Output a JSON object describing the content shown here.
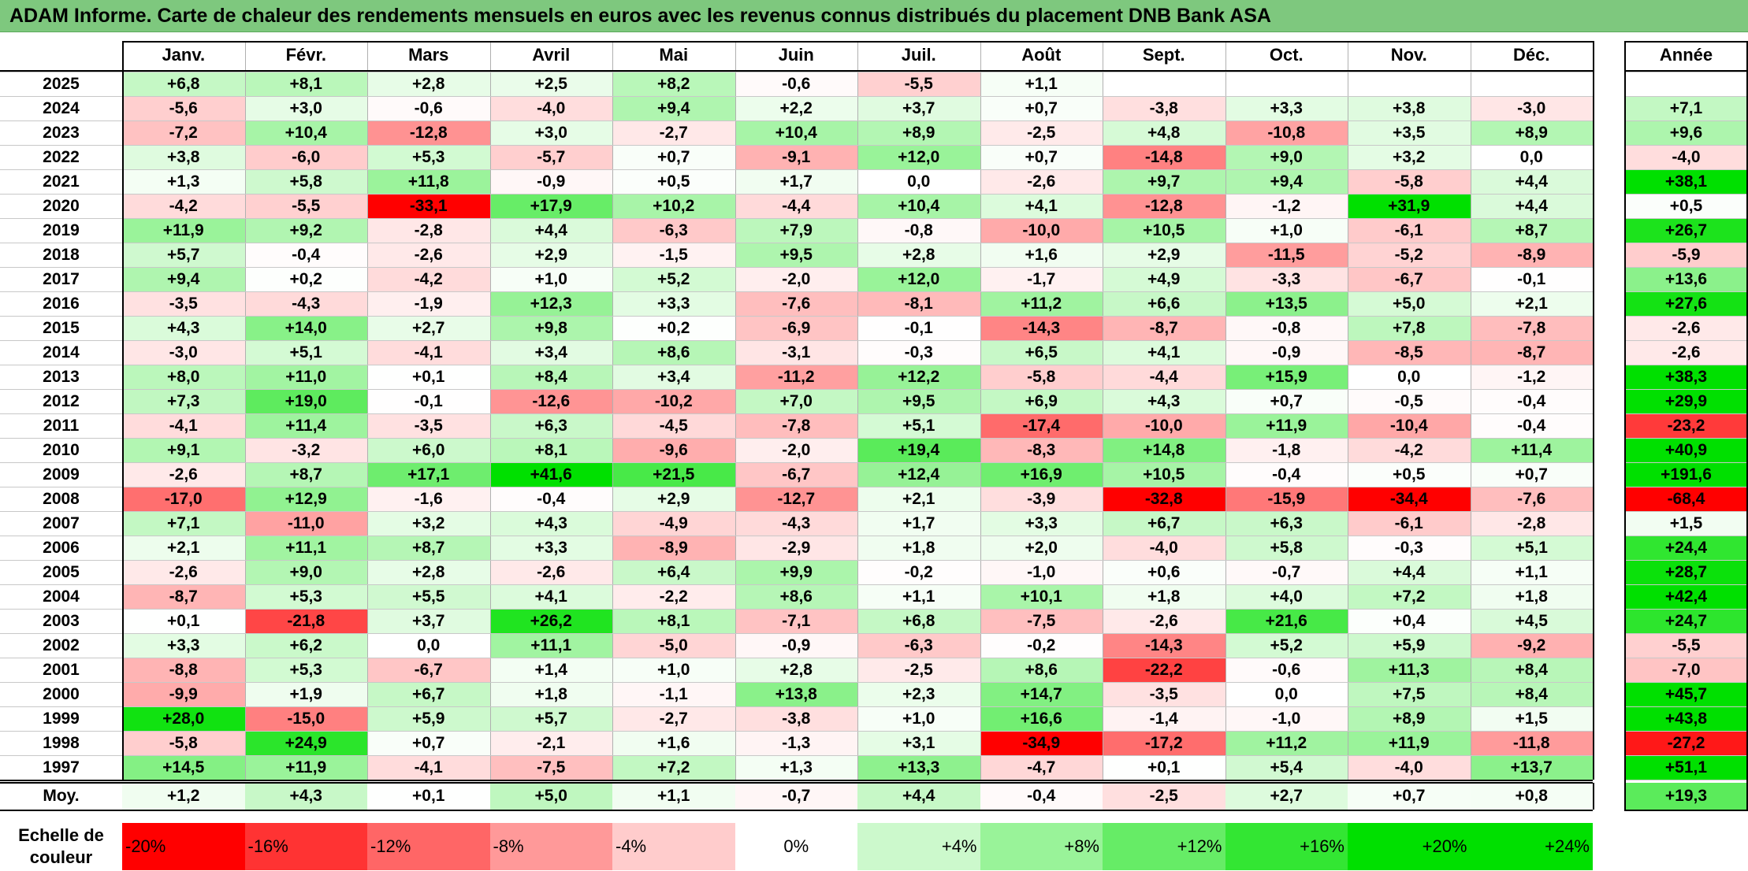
{
  "title": "ADAM Informe. Carte de chaleur des rendements mensuels en euros avec les revenus connus distribués du placement DNB Bank ASA",
  "chart_data": {
    "type": "heatmap",
    "title": "ADAM Informe. Carte de chaleur des rendements mensuels en euros avec les revenus connus distribués du placement DNB Bank ASA",
    "columns": [
      "Janv.",
      "Févr.",
      "Mars",
      "Avril",
      "Mai",
      "Juin",
      "Juil.",
      "Août",
      "Sept.",
      "Oct.",
      "Nov.",
      "Déc."
    ],
    "annual_header": "Année",
    "rows": [
      {
        "year": "2025",
        "values": [
          6.8,
          8.1,
          2.8,
          2.5,
          8.2,
          -0.6,
          -5.5,
          1.1,
          null,
          null,
          null,
          null
        ],
        "annual": null
      },
      {
        "year": "2024",
        "values": [
          -5.6,
          3.0,
          -0.6,
          -4.0,
          9.4,
          2.2,
          3.7,
          0.7,
          -3.8,
          3.3,
          3.8,
          -3.0
        ],
        "annual": 7.1
      },
      {
        "year": "2023",
        "values": [
          -7.2,
          10.4,
          -12.8,
          3.0,
          -2.7,
          10.4,
          8.9,
          -2.5,
          4.8,
          -10.8,
          3.5,
          8.9
        ],
        "annual": 9.6
      },
      {
        "year": "2022",
        "values": [
          3.8,
          -6.0,
          5.3,
          -5.7,
          0.7,
          -9.1,
          12.0,
          0.7,
          -14.8,
          9.0,
          3.2,
          0.0
        ],
        "annual": -4.0
      },
      {
        "year": "2021",
        "values": [
          1.3,
          5.8,
          11.8,
          -0.9,
          0.5,
          1.7,
          0.0,
          -2.6,
          9.7,
          9.4,
          -5.8,
          4.4
        ],
        "annual": 38.1
      },
      {
        "year": "2020",
        "values": [
          -4.2,
          -5.5,
          -33.1,
          17.9,
          10.2,
          -4.4,
          10.4,
          4.1,
          -12.8,
          -1.2,
          31.9,
          4.4
        ],
        "annual": 0.5
      },
      {
        "year": "2019",
        "values": [
          11.9,
          9.2,
          -2.8,
          4.4,
          -6.3,
          7.9,
          -0.8,
          -10.0,
          10.5,
          1.0,
          -6.1,
          8.7
        ],
        "annual": 26.7
      },
      {
        "year": "2018",
        "values": [
          5.7,
          -0.4,
          -2.6,
          2.9,
          -1.5,
          9.5,
          2.8,
          1.6,
          2.9,
          -11.5,
          -5.2,
          -8.9
        ],
        "annual": -5.9
      },
      {
        "year": "2017",
        "values": [
          9.4,
          0.2,
          -4.2,
          1.0,
          5.2,
          -2.0,
          12.0,
          -1.7,
          4.9,
          -3.3,
          -6.7,
          -0.1
        ],
        "annual": 13.6
      },
      {
        "year": "2016",
        "values": [
          -3.5,
          -4.3,
          -1.9,
          12.3,
          3.3,
          -7.6,
          -8.1,
          11.2,
          6.6,
          13.5,
          5.0,
          2.1
        ],
        "annual": 27.6
      },
      {
        "year": "2015",
        "values": [
          4.3,
          14.0,
          2.7,
          9.8,
          0.2,
          -6.9,
          -0.1,
          -14.3,
          -8.7,
          -0.8,
          7.8,
          -7.8
        ],
        "annual": -2.6
      },
      {
        "year": "2014",
        "values": [
          -3.0,
          5.1,
          -4.1,
          3.4,
          8.6,
          -3.1,
          -0.3,
          6.5,
          4.1,
          -0.9,
          -8.5,
          -8.7
        ],
        "annual": -2.6
      },
      {
        "year": "2013",
        "values": [
          8.0,
          11.0,
          0.1,
          8.4,
          3.4,
          -11.2,
          12.2,
          -5.8,
          -4.4,
          15.9,
          0.0,
          -1.2
        ],
        "annual": 38.3
      },
      {
        "year": "2012",
        "values": [
          7.3,
          19.0,
          -0.1,
          -12.6,
          -10.2,
          7.0,
          9.5,
          6.9,
          4.3,
          0.7,
          -0.5,
          -0.4
        ],
        "annual": 29.9
      },
      {
        "year": "2011",
        "values": [
          -4.1,
          11.4,
          -3.5,
          6.3,
          -4.5,
          -7.8,
          5.1,
          -17.4,
          -10.0,
          11.9,
          -10.4,
          -0.4
        ],
        "annual": -23.2
      },
      {
        "year": "2010",
        "values": [
          9.1,
          -3.2,
          6.0,
          8.1,
          -9.6,
          -2.0,
          19.4,
          -8.3,
          14.8,
          -1.8,
          -4.2,
          11.4
        ],
        "annual": 40.9
      },
      {
        "year": "2009",
        "values": [
          -2.6,
          8.7,
          17.1,
          41.6,
          21.5,
          -6.7,
          12.4,
          16.9,
          10.5,
          -0.4,
          0.5,
          0.7
        ],
        "annual": 191.6
      },
      {
        "year": "2008",
        "values": [
          -17.0,
          12.9,
          -1.6,
          -0.4,
          2.9,
          -12.7,
          2.1,
          -3.9,
          -32.8,
          -15.9,
          -34.4,
          -7.6
        ],
        "annual": -68.4
      },
      {
        "year": "2007",
        "values": [
          7.1,
          -11.0,
          3.2,
          4.3,
          -4.9,
          -4.3,
          1.7,
          3.3,
          6.7,
          6.3,
          -6.1,
          -2.8
        ],
        "annual": 1.5
      },
      {
        "year": "2006",
        "values": [
          2.1,
          11.1,
          8.7,
          3.3,
          -8.9,
          -2.9,
          1.8,
          2.0,
          -4.0,
          5.8,
          -0.3,
          5.1
        ],
        "annual": 24.4
      },
      {
        "year": "2005",
        "values": [
          -2.6,
          9.0,
          2.8,
          -2.6,
          6.4,
          9.9,
          -0.2,
          -1.0,
          0.6,
          -0.7,
          4.4,
          1.1
        ],
        "annual": 28.7
      },
      {
        "year": "2004",
        "values": [
          -8.7,
          5.3,
          5.5,
          4.1,
          -2.2,
          8.6,
          1.1,
          10.1,
          1.8,
          4.0,
          7.2,
          1.8
        ],
        "annual": 42.4
      },
      {
        "year": "2003",
        "values": [
          0.1,
          -21.8,
          3.7,
          26.2,
          8.1,
          -7.1,
          6.8,
          -7.5,
          -2.6,
          21.6,
          0.4,
          4.5
        ],
        "annual": 24.7
      },
      {
        "year": "2002",
        "values": [
          3.3,
          6.2,
          0.0,
          11.1,
          -5.0,
          -0.9,
          -6.3,
          -0.2,
          -14.3,
          5.2,
          5.9,
          -9.2
        ],
        "annual": -5.5
      },
      {
        "year": "2001",
        "values": [
          -8.8,
          5.3,
          -6.7,
          1.4,
          1.0,
          2.8,
          -2.5,
          8.6,
          -22.2,
          -0.6,
          11.3,
          8.4
        ],
        "annual": -7.0
      },
      {
        "year": "2000",
        "values": [
          -9.9,
          1.9,
          6.7,
          1.8,
          -1.1,
          13.8,
          2.3,
          14.7,
          -3.5,
          0.0,
          7.5,
          8.4
        ],
        "annual": 45.7
      },
      {
        "year": "1999",
        "values": [
          28.0,
          -15.0,
          5.9,
          5.7,
          -2.7,
          -3.8,
          1.0,
          16.6,
          -1.4,
          -1.0,
          8.9,
          1.5
        ],
        "annual": 43.8
      },
      {
        "year": "1998",
        "values": [
          -5.8,
          24.9,
          0.7,
          -2.1,
          1.6,
          -1.3,
          3.1,
          -34.9,
          -17.2,
          11.2,
          11.9,
          -11.8
        ],
        "annual": -27.2
      },
      {
        "year": "1997",
        "values": [
          14.5,
          11.9,
          -4.1,
          -7.5,
          7.2,
          1.3,
          13.3,
          -4.7,
          0.1,
          5.4,
          -4.0,
          13.7
        ],
        "annual": 51.1
      }
    ],
    "average": {
      "label": "Moy.",
      "values": [
        1.2,
        4.3,
        0.1,
        5.0,
        1.1,
        -0.7,
        4.4,
        -0.4,
        -2.5,
        2.7,
        0.7,
        0.8
      ],
      "annual": 19.3
    },
    "scale": {
      "label": "Echelle de couleur",
      "steps": [
        -20,
        -16,
        -12,
        -8,
        -4,
        0,
        4,
        8,
        12,
        16,
        20,
        24
      ],
      "labels": [
        "-20%",
        "-16%",
        "-12%",
        "-8%",
        "-4%",
        "0%",
        "+4%",
        "+8%",
        "+12%",
        "+16%",
        "+20%",
        "+24%"
      ]
    },
    "colors": {
      "negative": "#ff0000",
      "neutral": "#ffffff",
      "positive": "#00e000",
      "title_bg": "#7ec87e"
    }
  }
}
